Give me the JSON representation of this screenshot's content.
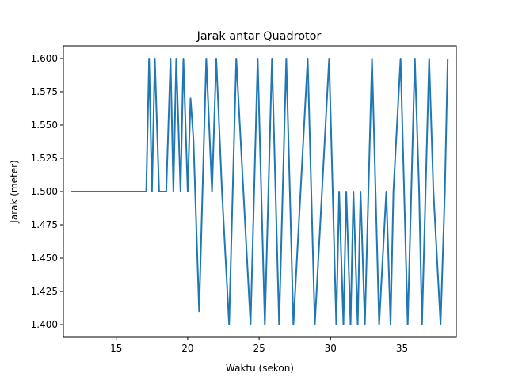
{
  "chart_data": {
    "type": "line",
    "title": "Jarak antar Quadrotor",
    "xlabel": "Waktu (sekon)",
    "ylabel": "Jarak (meter)",
    "xlim": [
      11.3,
      38.8
    ],
    "ylim": [
      1.3905,
      1.6095
    ],
    "xticks": [
      15,
      20,
      25,
      30,
      35
    ],
    "yticks": [
      1.4,
      1.425,
      1.45,
      1.475,
      1.5,
      1.525,
      1.55,
      1.575,
      1.6
    ],
    "xtick_labels": [
      "15",
      "20",
      "25",
      "30",
      "35"
    ],
    "ytick_labels": [
      "1.400",
      "1.425",
      "1.450",
      "1.475",
      "1.500",
      "1.525",
      "1.550",
      "1.575",
      "1.600"
    ],
    "grid": false,
    "line_color": "#1f77b4",
    "series": [
      {
        "x": [
          11.8,
          17.1,
          17.3,
          17.5,
          17.7,
          18.0,
          18.2,
          18.5,
          18.8,
          19.0,
          19.2,
          19.5,
          19.7,
          20.0,
          20.2,
          20.4,
          20.8,
          21.3,
          21.7,
          22.0,
          22.4,
          22.9,
          23.4,
          23.9,
          24.4,
          24.9,
          25.4,
          25.9,
          26.4,
          26.9,
          27.4,
          27.9,
          28.4,
          28.9,
          29.4,
          29.9,
          30.4,
          30.6,
          30.9,
          31.1,
          31.4,
          31.6,
          31.9,
          32.1,
          32.4,
          32.9,
          33.4,
          33.9,
          34.2,
          34.4,
          34.9,
          35.4,
          35.9,
          36.2,
          36.4,
          36.9,
          37.2,
          37.7,
          38.0,
          38.2
        ],
        "y": [
          1.5,
          1.5,
          1.6,
          1.5,
          1.6,
          1.5,
          1.5,
          1.5,
          1.6,
          1.5,
          1.6,
          1.5,
          1.6,
          1.5,
          1.57,
          1.54,
          1.41,
          1.6,
          1.5,
          1.6,
          1.5,
          1.4,
          1.6,
          1.5,
          1.4,
          1.6,
          1.4,
          1.6,
          1.4,
          1.6,
          1.4,
          1.5,
          1.6,
          1.4,
          1.5,
          1.6,
          1.4,
          1.5,
          1.4,
          1.5,
          1.4,
          1.5,
          1.4,
          1.5,
          1.4,
          1.6,
          1.4,
          1.5,
          1.4,
          1.5,
          1.6,
          1.4,
          1.6,
          1.5,
          1.4,
          1.6,
          1.5,
          1.4,
          1.5,
          1.6
        ]
      }
    ]
  }
}
